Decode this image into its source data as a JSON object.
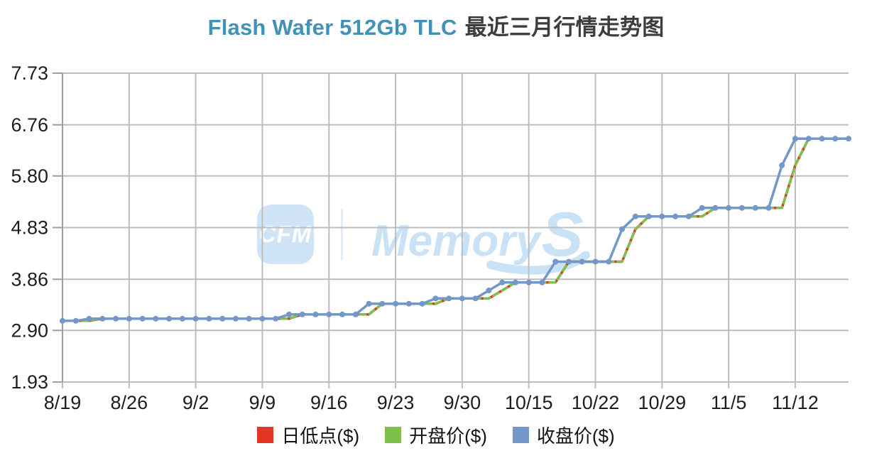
{
  "title": {
    "product": "Flash Wafer 512Gb TLC",
    "suffix": "最近三月行情走势图"
  },
  "watermark": {
    "badge": "CFM",
    "brand_main": "Memory",
    "brand_s": "S"
  },
  "colors": {
    "title_en": "#4292b8",
    "title_cn": "#3d3d3d",
    "grid": "#bdbdbd",
    "axis": "#9e9e9e",
    "watermark_blue": "#c9e2f6",
    "low_red": "#e23427",
    "open_green": "#7dc14c",
    "close_blue": "#7397c8"
  },
  "chart_data": {
    "type": "line",
    "title": "Flash Wafer 512Gb TLC 最近三月行情走势图",
    "xlabel": "",
    "ylabel": "",
    "grid": true,
    "legend_position": "bottom",
    "ylim": [
      1.93,
      7.73
    ],
    "y_ticks": [
      "7.73",
      "6.76",
      "5.80",
      "4.83",
      "3.86",
      "2.90",
      "1.93"
    ],
    "x_tick_labels": [
      "8/19",
      "8/26",
      "9/2",
      "9/9",
      "9/16",
      "9/23",
      "9/30",
      "10/15",
      "10/22",
      "10/29",
      "11/5",
      "11/12"
    ],
    "x_tick_indices": [
      0,
      5,
      10,
      15,
      20,
      25,
      30,
      35,
      40,
      45,
      50,
      55
    ],
    "n_points": 60,
    "series": [
      {
        "key": "daily-low",
        "name": "日低点($)",
        "color": "#e23427",
        "style": "solid",
        "markers": false,
        "values": [
          3.08,
          3.08,
          3.08,
          3.12,
          3.12,
          3.12,
          3.12,
          3.12,
          3.12,
          3.12,
          3.12,
          3.12,
          3.12,
          3.12,
          3.12,
          3.12,
          3.12,
          3.12,
          3.2,
          3.2,
          3.2,
          3.2,
          3.2,
          3.2,
          3.4,
          3.4,
          3.4,
          3.4,
          3.4,
          3.5,
          3.5,
          3.5,
          3.5,
          3.65,
          3.8,
          3.8,
          3.8,
          3.8,
          4.19,
          4.19,
          4.19,
          4.19,
          4.19,
          4.8,
          5.04,
          5.04,
          5.04,
          5.04,
          5.04,
          5.2,
          5.2,
          5.2,
          5.2,
          5.2,
          5.2,
          6.0,
          6.5,
          6.5,
          6.5,
          6.5
        ]
      },
      {
        "key": "open",
        "name": "开盘价($)",
        "color": "#7dc14c",
        "style": "dashed",
        "markers": false,
        "values": [
          3.08,
          3.08,
          3.08,
          3.12,
          3.12,
          3.12,
          3.12,
          3.12,
          3.12,
          3.12,
          3.12,
          3.12,
          3.12,
          3.12,
          3.12,
          3.12,
          3.12,
          3.12,
          3.2,
          3.2,
          3.2,
          3.2,
          3.2,
          3.2,
          3.4,
          3.4,
          3.4,
          3.4,
          3.4,
          3.5,
          3.5,
          3.5,
          3.5,
          3.65,
          3.8,
          3.8,
          3.8,
          3.8,
          4.19,
          4.19,
          4.19,
          4.19,
          4.19,
          4.8,
          5.04,
          5.04,
          5.04,
          5.04,
          5.04,
          5.2,
          5.2,
          5.2,
          5.2,
          5.2,
          5.2,
          6.0,
          6.5,
          6.5,
          6.5,
          6.5
        ]
      },
      {
        "key": "close",
        "name": "收盘价($)",
        "color": "#7397c8",
        "style": "solid",
        "markers": true,
        "values": [
          3.08,
          3.08,
          3.12,
          3.12,
          3.12,
          3.12,
          3.12,
          3.12,
          3.12,
          3.12,
          3.12,
          3.12,
          3.12,
          3.12,
          3.12,
          3.12,
          3.12,
          3.2,
          3.2,
          3.2,
          3.2,
          3.2,
          3.2,
          3.4,
          3.4,
          3.4,
          3.4,
          3.4,
          3.5,
          3.5,
          3.5,
          3.5,
          3.65,
          3.8,
          3.8,
          3.8,
          3.8,
          4.19,
          4.19,
          4.19,
          4.19,
          4.19,
          4.8,
          5.04,
          5.04,
          5.04,
          5.04,
          5.04,
          5.2,
          5.2,
          5.2,
          5.2,
          5.2,
          5.2,
          6.0,
          6.5,
          6.5,
          6.5,
          6.5,
          6.5
        ]
      }
    ]
  }
}
